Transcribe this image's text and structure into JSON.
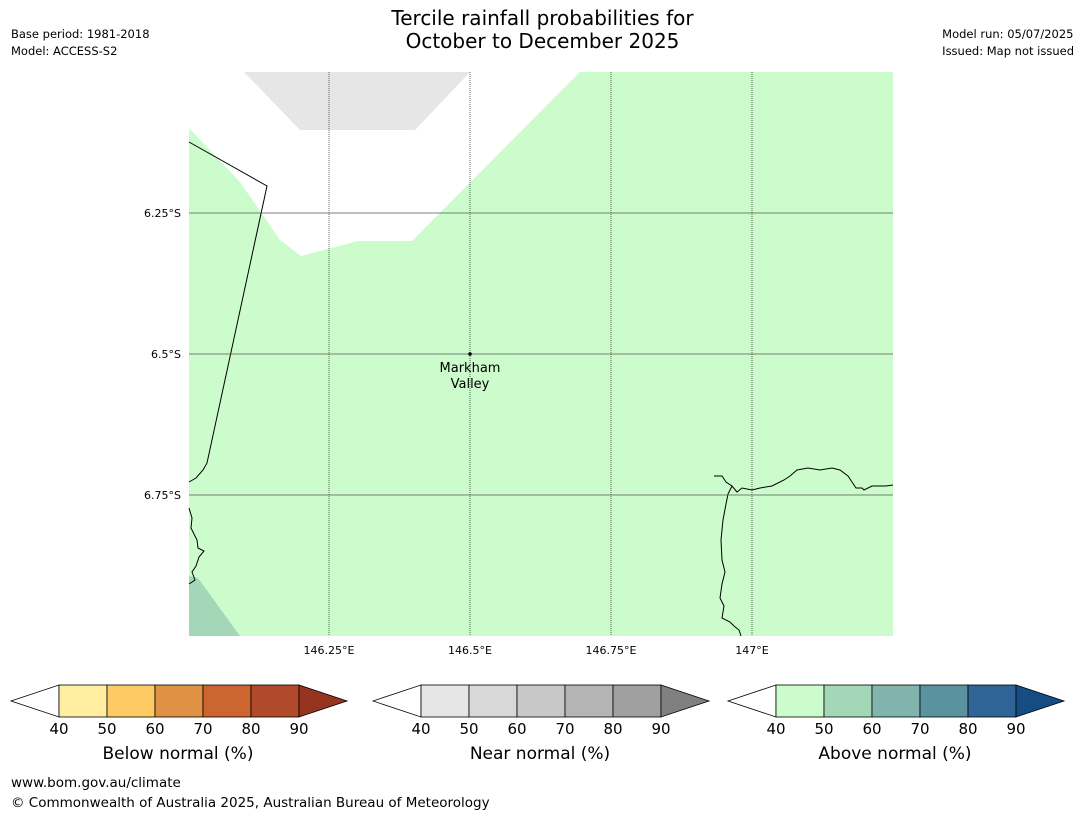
{
  "title_line1": "Tercile rainfall probabilities for",
  "title_line2": "October to December 2025",
  "meta_left": {
    "base_period": "Base period: 1981-2018",
    "model": "Model: ACCESS-S2"
  },
  "meta_right": {
    "model_run": "Model run: 05/07/2025",
    "issued": "Issued: Map not issued"
  },
  "map": {
    "lat_labels": [
      "6.25°S",
      "6.5°S",
      "6.75°S"
    ],
    "lon_labels": [
      "146.25°E",
      "146.5°E",
      "146.75°E",
      "147°E"
    ],
    "place": {
      "name_line1": "Markham",
      "name_line2": "Valley",
      "lon": 146.5,
      "lat": -6.5
    },
    "region_colors": {
      "above_40_50": "#ccfccc",
      "above_50_60": "#a4d6b8",
      "near_40_50": "#e6e6e6",
      "below_normal_none": "#ffffff"
    }
  },
  "colorbars": [
    {
      "name": "below",
      "label": "Below normal (%)",
      "ticks": [
        "40",
        "50",
        "60",
        "70",
        "80",
        "90"
      ],
      "colors": [
        "#ffeea0",
        "#fdca64",
        "#e09244",
        "#cd6530",
        "#b04a2a",
        "#96341f"
      ]
    },
    {
      "name": "near",
      "label": "Near normal (%)",
      "ticks": [
        "40",
        "50",
        "60",
        "70",
        "80",
        "90"
      ],
      "colors": [
        "#e6e6e6",
        "#d8d8d8",
        "#c8c8c8",
        "#b4b4b4",
        "#a0a0a0",
        "#808080"
      ]
    },
    {
      "name": "above",
      "label": "Above normal (%)",
      "ticks": [
        "40",
        "50",
        "60",
        "70",
        "80",
        "90"
      ],
      "colors": [
        "#ccfccc",
        "#a4d6b8",
        "#82b4ae",
        "#5a92a0",
        "#2f6496",
        "#154c84"
      ]
    }
  ],
  "footer": {
    "url": "www.bom.gov.au/climate",
    "copyright": "© Commonwealth of Australia 2025, Australian Bureau of Meteorology"
  }
}
